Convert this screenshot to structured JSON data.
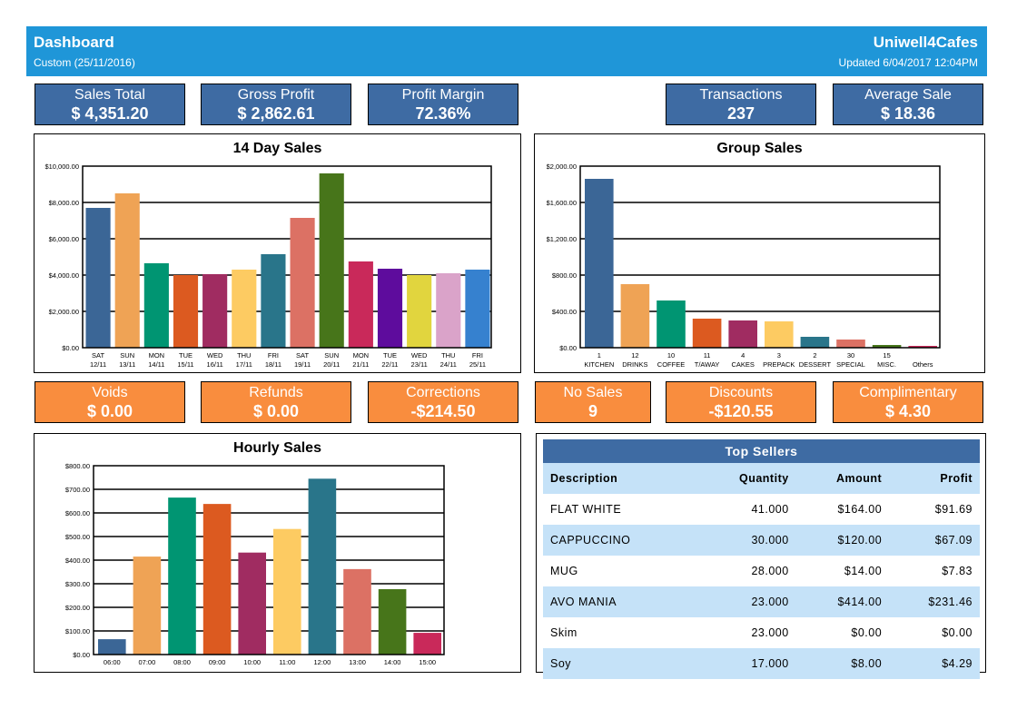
{
  "header": {
    "title": "Dashboard",
    "subtitle": "Custom (25/11/2016)",
    "brand": "Uniwell4Cafes",
    "updated": "Updated 6/04/2017 12:04PM",
    "color": "#1f96d8"
  },
  "kpis_top": [
    {
      "label": "Sales Total",
      "value": "$ 4,351.20"
    },
    {
      "label": "Gross Profit",
      "value": "$ 2,862.61"
    },
    {
      "label": "Profit Margin",
      "value": "72.36%"
    },
    {
      "label": "Transactions",
      "value": "237"
    },
    {
      "label": "Average Sale",
      "value": "$ 18.36"
    }
  ],
  "kpis_bottom": [
    {
      "label": "Voids",
      "value": "$ 0.00"
    },
    {
      "label": "Refunds",
      "value": "$ 0.00"
    },
    {
      "label": "Corrections",
      "value": "-$214.50"
    },
    {
      "label": "No Sales",
      "value": "9"
    },
    {
      "label": "Discounts",
      "value": "-$120.55"
    },
    {
      "label": "Complimentary",
      "value": "$ 4.30"
    }
  ],
  "palette": [
    "#3b6696",
    "#efa355",
    "#009572",
    "#dc5a20",
    "#a02c61",
    "#fdcb62",
    "#29758a",
    "#dc7164",
    "#47751a",
    "#c9295a",
    "#5e0c9d",
    "#e1d53e",
    "#daa3c9",
    "#3681cf"
  ],
  "chart_data": [
    {
      "id": "fourteen_day",
      "type": "bar",
      "title": "14 Day Sales",
      "xlabel": "",
      "ylabel": "",
      "ylim": [
        0,
        10000
      ],
      "yticks": [
        "$0.00",
        "$2,000.00",
        "$4,000.00",
        "$6,000.00",
        "$8,000.00",
        "$10,000.00"
      ],
      "grid": true,
      "categories": [
        [
          "SAT",
          "12/11"
        ],
        [
          "SUN",
          "13/11"
        ],
        [
          "MON",
          "14/11"
        ],
        [
          "TUE",
          "15/11"
        ],
        [
          "WED",
          "16/11"
        ],
        [
          "THU",
          "17/11"
        ],
        [
          "FRI",
          "18/11"
        ],
        [
          "SAT",
          "19/11"
        ],
        [
          "SUN",
          "20/11"
        ],
        [
          "MON",
          "21/11"
        ],
        [
          "TUE",
          "22/11"
        ],
        [
          "WED",
          "23/11"
        ],
        [
          "THU",
          "24/11"
        ],
        [
          "FRI",
          "25/11"
        ]
      ],
      "values": [
        7700,
        8500,
        4650,
        4000,
        4050,
        4300,
        5150,
        7150,
        9600,
        4750,
        4350,
        4000,
        4100,
        4300
      ]
    },
    {
      "id": "group_sales",
      "type": "bar",
      "title": "Group Sales",
      "xlabel": "",
      "ylabel": "",
      "ylim": [
        0,
        2000
      ],
      "yticks": [
        "$0.00",
        "$400.00",
        "$800.00",
        "$1,200.00",
        "$1,600.00",
        "$2,000.00"
      ],
      "grid": true,
      "categories": [
        [
          "1",
          "KITCHEN"
        ],
        [
          "12",
          "DRINKS"
        ],
        [
          "10",
          "COFFEE"
        ],
        [
          "11",
          "T/AWAY"
        ],
        [
          "4",
          "CAKES"
        ],
        [
          "3",
          "PREPACK"
        ],
        [
          "2",
          "DESSERT"
        ],
        [
          "30",
          "SPECIAL"
        ],
        [
          "15",
          "MISC."
        ],
        [
          "",
          "Others"
        ]
      ],
      "values": [
        1860,
        700,
        520,
        320,
        300,
        290,
        120,
        90,
        30,
        20
      ]
    },
    {
      "id": "hourly_sales",
      "type": "bar",
      "title": "Hourly Sales",
      "xlabel": "",
      "ylabel": "",
      "ylim": [
        0,
        800
      ],
      "yticks": [
        "$0.00",
        "$100.00",
        "$200.00",
        "$300.00",
        "$400.00",
        "$500.00",
        "$600.00",
        "$700.00",
        "$800.00"
      ],
      "grid": true,
      "categories": [
        [
          "06:00"
        ],
        [
          "07:00"
        ],
        [
          "08:00"
        ],
        [
          "09:00"
        ],
        [
          "10:00"
        ],
        [
          "11:00"
        ],
        [
          "12:00"
        ],
        [
          "13:00"
        ],
        [
          "14:00"
        ],
        [
          "15:00"
        ]
      ],
      "values": [
        65,
        415,
        665,
        638,
        432,
        532,
        745,
        362,
        277,
        92
      ]
    }
  ],
  "top_sellers": {
    "title": "Top Sellers",
    "columns": [
      "Description",
      "Quantity",
      "Amount",
      "Profit"
    ],
    "rows": [
      [
        "FLAT WHITE",
        "41.000",
        "$164.00",
        "$91.69"
      ],
      [
        "CAPPUCCINO",
        "30.000",
        "$120.00",
        "$67.09"
      ],
      [
        "MUG",
        "28.000",
        "$14.00",
        "$7.83"
      ],
      [
        "AVO MANIA",
        "23.000",
        "$414.00",
        "$231.46"
      ],
      [
        "Skim",
        "23.000",
        "$0.00",
        "$0.00"
      ],
      [
        "Soy",
        "17.000",
        "$8.00",
        "$4.29"
      ]
    ]
  }
}
